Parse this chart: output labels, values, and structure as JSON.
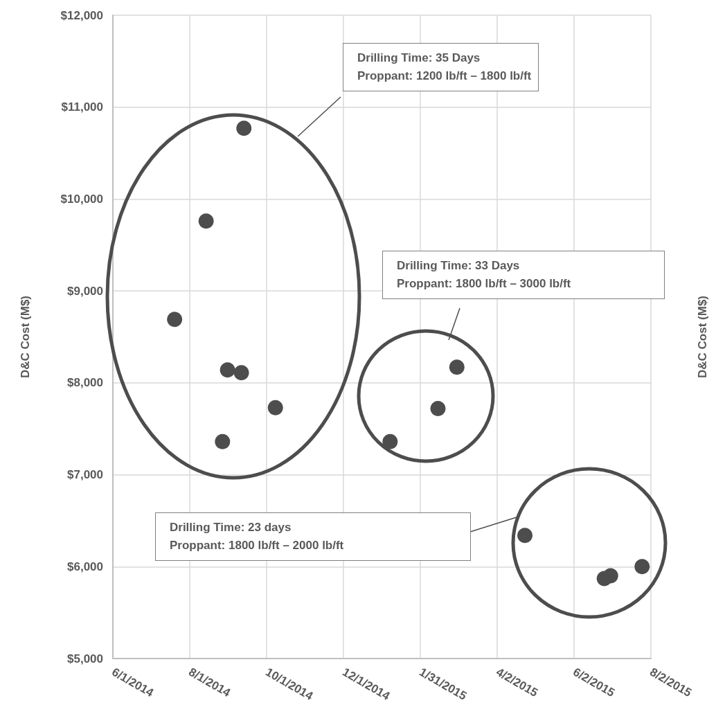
{
  "chart_data": {
    "type": "scatter",
    "ylabel": "D&C Cost (M$)",
    "y2label": "D&C Cost (M$)",
    "series": [
      {
        "color": "#4d4d4d",
        "x": [
          "2014-07-20",
          "2014-08-14",
          "2014-09-13",
          "2014-08-31",
          "2014-09-11",
          "2014-10-08",
          "2014-08-27"
        ],
        "values": [
          8690,
          9760,
          10770,
          8140,
          8110,
          7730,
          7360
        ]
      },
      {
        "color": "#4d4d4d",
        "x": [
          "2015-01-07",
          "2015-02-14",
          "2015-03-01"
        ],
        "values": [
          7360,
          7720,
          8170
        ]
      },
      {
        "color": "#4d4d4d",
        "x": [
          "2015-04-24",
          "2015-06-26",
          "2015-07-01",
          "2015-07-26"
        ],
        "values": [
          6340,
          5870,
          5900,
          6000
        ]
      }
    ],
    "xlim": [
      "2014-06-01",
      "2015-08-02"
    ],
    "xticks": [
      {
        "value": "2014-06-01",
        "label": "6/1/2014"
      },
      {
        "value": "2014-08-01",
        "label": "8/1/2014"
      },
      {
        "value": "2014-10-01",
        "label": "10/1/2014"
      },
      {
        "value": "2014-12-01",
        "label": "12/1/2014"
      },
      {
        "value": "2015-01-31",
        "label": "1/31/2015"
      },
      {
        "value": "2015-04-02",
        "label": "4/2/2015"
      },
      {
        "value": "2015-06-02",
        "label": "6/2/2015"
      },
      {
        "value": "2015-08-02",
        "label": "8/2/2015"
      }
    ],
    "ylim": [
      5000,
      12000
    ],
    "yticks": [
      {
        "value": 5000,
        "label": "$5,000"
      },
      {
        "value": 6000,
        "label": "$6,000"
      },
      {
        "value": 7000,
        "label": "$7,000"
      },
      {
        "value": 8000,
        "label": "$8,000"
      },
      {
        "value": 9000,
        "label": "$9,000"
      },
      {
        "value": 10000,
        "label": "$10,000"
      },
      {
        "value": 11000,
        "label": "$11,000"
      },
      {
        "value": 12000,
        "label": "$12,000"
      }
    ],
    "annotations": [
      "Drilling Time: 35 Days\nProppant: 1200 lb/ft – 1800 lb/ft",
      "Drilling Time: 33 Days\nProppant: 1800 lb/ft – 3000 lb/ft",
      "Drilling Time: 23 days\nProppant: 1800 lb/ft – 2000 lb/ft"
    ],
    "grid": true,
    "marker": "circle"
  }
}
